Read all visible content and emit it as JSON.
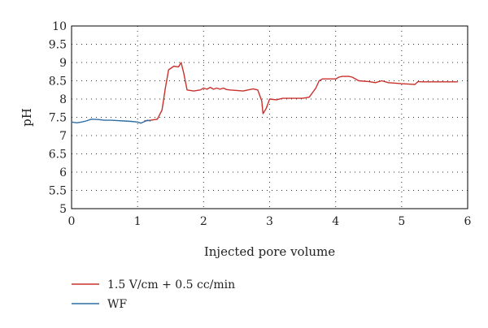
{
  "chart_data": {
    "type": "line",
    "title": "",
    "xlabel": "Injected pore volume",
    "ylabel": "pH",
    "xlim": [
      0,
      6
    ],
    "ylim": [
      5,
      10
    ],
    "x_ticks": [
      0,
      1,
      2,
      3,
      4,
      5,
      6
    ],
    "y_ticks": [
      5,
      5.5,
      6,
      6.5,
      7,
      7.5,
      8,
      8.5,
      9,
      9.5,
      10
    ],
    "y_tick_labels": [
      "5",
      "5.5",
      "6",
      "6.5",
      "7",
      "7.5",
      "8",
      "8.5",
      "9",
      "9.5",
      "10"
    ],
    "grid": "dotted",
    "legend_position": "bottom-left",
    "series": [
      {
        "name": "1.5 V/cm + 0.5 cc/min",
        "color": "#c9302c",
        "x": [
          1.1,
          1.2,
          1.3,
          1.37,
          1.42,
          1.47,
          1.55,
          1.62,
          1.66,
          1.7,
          1.75,
          1.85,
          1.95,
          2.0,
          2.05,
          2.1,
          2.15,
          2.2,
          2.25,
          2.3,
          2.35,
          2.4,
          2.6,
          2.75,
          2.82,
          2.88,
          2.9,
          2.95,
          3.0,
          3.1,
          3.2,
          3.3,
          3.5,
          3.6,
          3.7,
          3.75,
          3.8,
          3.9,
          4.0,
          4.05,
          4.1,
          4.2,
          4.25,
          4.35,
          4.5,
          4.6,
          4.7,
          4.8,
          5.0,
          5.2,
          5.25,
          5.3,
          5.5,
          5.7,
          5.85
        ],
        "values": [
          7.4,
          7.42,
          7.45,
          7.7,
          8.3,
          8.8,
          8.9,
          8.88,
          9.0,
          8.7,
          8.25,
          8.22,
          8.25,
          8.3,
          8.27,
          8.32,
          8.27,
          8.3,
          8.27,
          8.3,
          8.26,
          8.25,
          8.22,
          8.28,
          8.25,
          7.95,
          7.6,
          7.75,
          8.0,
          7.98,
          8.02,
          8.02,
          8.02,
          8.05,
          8.3,
          8.5,
          8.55,
          8.55,
          8.55,
          8.6,
          8.62,
          8.62,
          8.6,
          8.5,
          8.48,
          8.45,
          8.5,
          8.45,
          8.42,
          8.4,
          8.48,
          8.47,
          8.47,
          8.47,
          8.47
        ]
      },
      {
        "name": "WF",
        "color": "#2e6da4",
        "x": [
          0.0,
          0.08,
          0.15,
          0.22,
          0.3,
          0.4,
          0.5,
          0.6,
          0.7,
          0.8,
          0.9,
          1.0,
          1.05,
          1.1,
          1.15,
          1.2
        ],
        "values": [
          7.37,
          7.35,
          7.37,
          7.4,
          7.45,
          7.44,
          7.42,
          7.42,
          7.41,
          7.4,
          7.39,
          7.37,
          7.34,
          7.38,
          7.42,
          7.4
        ]
      }
    ]
  }
}
